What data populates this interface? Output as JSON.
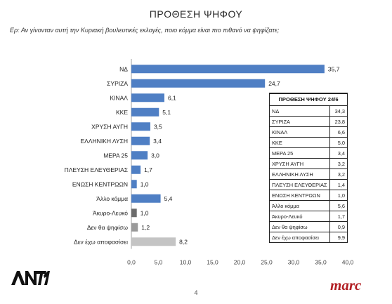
{
  "header": {
    "title": "ΠΡΟΘΕΣΗ ΨΗΦΟΥ",
    "question": "Ερ: Αν γίνονταν αυτή την Κυριακή βουλευτικές εκλογές, ποιο κόμμα είναι πιο πιθανό να ψηφίζατε;"
  },
  "chart_data": {
    "type": "bar",
    "orientation": "horizontal",
    "categories": [
      "ΝΔ",
      "ΣΥΡΙΖΑ",
      "ΚΙΝΑΛ",
      "ΚΚΕ",
      "ΧΡΥΣΗ ΑΥΓΗ",
      "ΕΛΛΗΝΙΚΗ ΛΥΣΗ",
      "ΜΕΡΑ 25",
      "ΠΛΕΥΣΗ ΕΛΕΥΘΕΡΙΑΣ",
      "ΕΝΩΣΗ ΚΕΝΤΡΩΩΝ",
      "Άλλο κόμμα",
      "Άκυρο-Λευκό",
      "Δεν θα ψηφίσω",
      "Δεν έχω αποφασίσει"
    ],
    "values": [
      35.7,
      24.7,
      6.1,
      5.1,
      3.5,
      3.4,
      3.0,
      1.7,
      1.0,
      5.4,
      1.0,
      1.2,
      8.2
    ],
    "value_labels": [
      "35,7",
      "24,7",
      "6,1",
      "5,1",
      "3,5",
      "3,4",
      "3,0",
      "1,7",
      "1,0",
      "5,4",
      "1,0",
      "1,2",
      "8,2"
    ],
    "colors": [
      "#4f7fc4",
      "#4f7fc4",
      "#4f7fc4",
      "#4f7fc4",
      "#4f7fc4",
      "#4f7fc4",
      "#4f7fc4",
      "#4f7fc4",
      "#4f7fc4",
      "#4f7fc4",
      "#6b6b6b",
      "#9a9a9a",
      "#c4c4c4"
    ],
    "xlim": [
      0,
      40
    ],
    "xticks": [
      "0,0",
      "5,0",
      "10,0",
      "15,0",
      "20,0",
      "25,0",
      "30,0",
      "35,0",
      "40,0"
    ],
    "grid": false
  },
  "comparison_table": {
    "title": "ΠΡΟΘΕΣΗ ΨΗΦΟΥ 24/6",
    "rows": [
      {
        "label": "ΝΔ",
        "value": "34,3"
      },
      {
        "label": "ΣΥΡΙΖΑ",
        "value": "23,8"
      },
      {
        "label": "ΚΙΝΑΛ",
        "value": "6,6"
      },
      {
        "label": "ΚΚΕ",
        "value": "5,0"
      },
      {
        "label": "ΜΕΡΑ 25",
        "value": "3,4"
      },
      {
        "label": "ΧΡΥΣΗ ΑΥΓΗ",
        "value": "3,2"
      },
      {
        "label": "ΕΛΛΗΝΙΚΗ ΛΥΣΗ",
        "value": "3,2"
      },
      {
        "label": "ΠΛΕΥΣΗ ΕΛΕΥΘΕΡΙΑΣ",
        "value": "1,4"
      },
      {
        "label": "ΕΝΩΣΗ ΚΕΝΤΡΩΩΝ",
        "value": "1,0"
      },
      {
        "label": "Άλλο κόμμα",
        "value": "5,6"
      },
      {
        "label": "Άκυρο-Λευκό",
        "value": "1,7"
      },
      {
        "label": "Δεν θα ψηφίσω",
        "value": "0,9"
      },
      {
        "label": "Δεν έχω αποφασίσει",
        "value": "9,9"
      }
    ]
  },
  "footer": {
    "page_number": "4",
    "logo_left": "ANT1",
    "logo_right": "marc"
  }
}
